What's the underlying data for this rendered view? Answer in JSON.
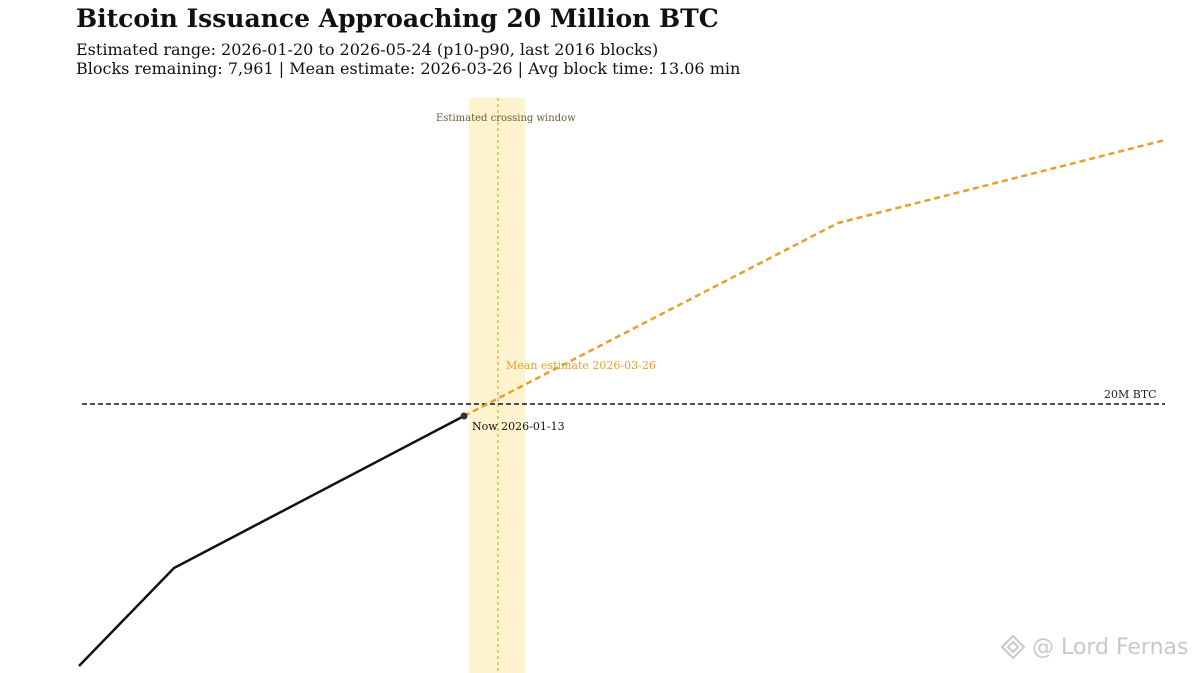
{
  "title": "Bitcoin Issuance Approaching 20 Million BTC",
  "subtitle_lines": [
    "Estimated range: 2026-01-20 to 2026-05-24 (p10-p90, last 2016 blocks)",
    "Blocks remaining: 7,961 | Mean estimate: 2026-03-26 | Avg block time: 13.06 min"
  ],
  "chart_data": {
    "type": "line",
    "title": "Bitcoin Issuance Approaching 20 Million BTC",
    "xlabel": "",
    "ylabel": "",
    "grid": false,
    "axes_visible": false,
    "reference_line": {
      "label": "20M BTC",
      "y": 20000000,
      "style": "dashed",
      "color": "#111111"
    },
    "shaded_band": {
      "label": "Estimated crossing window",
      "color": "#fdf3cf"
    },
    "mean_marker": {
      "label": "Mean estimate 2026-03-26",
      "style": "dotted",
      "color": "#e69f2a"
    },
    "now_marker": {
      "label": "Now 2026-01-13"
    },
    "series": [
      {
        "style": "solid",
        "color": "#111111"
      },
      {
        "style": "dashed",
        "color": "#e69f2a"
      }
    ]
  },
  "watermark": {
    "text": "@ Lord Fernas",
    "icon": "diamond-logo-icon",
    "color": "#c8c8c8"
  }
}
